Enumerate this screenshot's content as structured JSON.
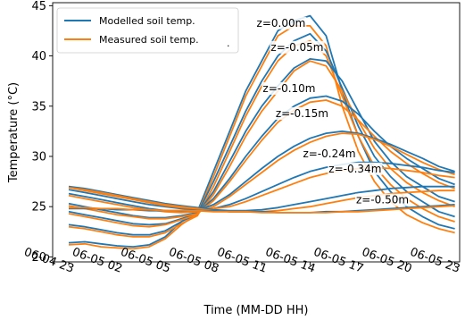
{
  "chart_data": {
    "type": "line",
    "xlabel": "Time (MM-DD HH)",
    "ylabel": "Temperature (°C)",
    "xlim": [
      -1,
      24.3
    ],
    "ylim": [
      19.5,
      45.3
    ],
    "x_ticks": [
      0,
      3,
      6,
      9,
      12,
      15,
      18,
      21,
      24
    ],
    "x_tick_labels": [
      "06-04 23",
      "06-05 02",
      "06-05 05",
      "06-05 08",
      "06-05 11",
      "06-05 14",
      "06-05 17",
      "06-05 20",
      "06-05 23"
    ],
    "y_ticks": [
      20,
      25,
      30,
      35,
      40,
      45
    ],
    "y_tick_labels": [
      "20",
      "25",
      "30",
      "35",
      "40",
      "45"
    ],
    "legend": {
      "position": "top-left",
      "entries": [
        {
          "label": "Modelled soil temp.",
          "color": "#1f77b4"
        },
        {
          "label": "Measured soil temp.",
          "color": "#ff7f0e"
        }
      ]
    },
    "legend_artifact": ".",
    "colors": {
      "modelled": "#1f77b4",
      "measured": "#ff7f0e"
    },
    "x": [
      0,
      1,
      2,
      3,
      4,
      5,
      6,
      7,
      8,
      9,
      10,
      11,
      12,
      13,
      14,
      15,
      16,
      17,
      18,
      19,
      20,
      21,
      22,
      23,
      24
    ],
    "depths": [
      {
        "label": "z=0.00m",
        "modelled": [
          21.4,
          21.5,
          21.3,
          21.1,
          21.0,
          21.2,
          22.0,
          23.5,
          24.5,
          28.5,
          32.5,
          36.5,
          39.5,
          42.5,
          43.5,
          44.0,
          42.0,
          36.5,
          32.0,
          28.5,
          26.5,
          25.0,
          24.0,
          23.2,
          22.8
        ],
        "measured": [
          21.2,
          21.3,
          21.0,
          20.9,
          20.8,
          21.0,
          21.8,
          23.2,
          24.3,
          28.0,
          32.0,
          36.0,
          39.0,
          42.0,
          43.0,
          43.0,
          41.0,
          35.0,
          30.5,
          27.5,
          25.5,
          24.2,
          23.4,
          22.8,
          22.4
        ]
      },
      {
        "label": "z=-0.05m",
        "modelled": [
          23.2,
          23.0,
          22.7,
          22.4,
          22.2,
          22.2,
          22.6,
          23.5,
          24.3,
          27.5,
          31.0,
          34.5,
          37.5,
          40.0,
          41.5,
          42.2,
          40.5,
          36.8,
          33.0,
          30.0,
          28.0,
          26.5,
          25.5,
          24.5,
          24.0
        ],
        "measured": [
          23.0,
          22.8,
          22.5,
          22.2,
          22.0,
          22.0,
          22.4,
          23.3,
          24.1,
          27.0,
          30.5,
          34.0,
          37.0,
          39.5,
          41.0,
          41.5,
          40.0,
          36.0,
          32.0,
          29.0,
          27.2,
          25.8,
          24.8,
          24.0,
          23.5
        ]
      },
      {
        "label": "z=-0.10m",
        "modelled": [
          24.5,
          24.2,
          23.9,
          23.6,
          23.3,
          23.2,
          23.3,
          23.8,
          24.3,
          26.5,
          29.5,
          32.5,
          35.0,
          37.0,
          38.8,
          39.7,
          39.5,
          37.5,
          34.5,
          31.5,
          29.5,
          28.0,
          27.0,
          26.0,
          25.5
        ],
        "measured": [
          24.3,
          24.0,
          23.7,
          23.4,
          23.1,
          23.0,
          23.2,
          23.7,
          24.2,
          26.2,
          29.0,
          32.0,
          34.5,
          36.5,
          38.5,
          39.5,
          39.0,
          36.5,
          33.5,
          30.8,
          28.8,
          27.4,
          26.4,
          25.6,
          25.0
        ]
      },
      {
        "label": "z=-0.15m",
        "modelled": [
          25.3,
          25.0,
          24.7,
          24.4,
          24.1,
          23.9,
          23.9,
          24.1,
          24.4,
          25.8,
          27.8,
          30.0,
          32.0,
          33.8,
          35.0,
          35.8,
          36.0,
          35.5,
          34.2,
          32.5,
          31.0,
          29.8,
          28.8,
          27.8,
          27.2
        ],
        "measured": [
          25.1,
          24.8,
          24.5,
          24.2,
          24.0,
          23.8,
          23.8,
          24.0,
          24.3,
          25.6,
          27.5,
          29.6,
          31.6,
          33.4,
          34.6,
          35.4,
          35.6,
          35.0,
          33.6,
          32.0,
          30.5,
          29.3,
          28.3,
          27.4,
          26.8
        ]
      },
      {
        "label": "z=-0.24m",
        "modelled": [
          26.3,
          26.0,
          25.7,
          25.4,
          25.1,
          24.8,
          24.6,
          24.5,
          24.6,
          25.2,
          26.2,
          27.5,
          28.8,
          30.0,
          31.0,
          31.8,
          32.3,
          32.5,
          32.3,
          31.8,
          31.2,
          30.5,
          29.8,
          29.0,
          28.5
        ],
        "measured": [
          26.1,
          25.8,
          25.5,
          25.2,
          24.9,
          24.7,
          24.5,
          24.4,
          24.5,
          25.0,
          26.0,
          27.2,
          28.4,
          29.6,
          30.6,
          31.4,
          32.0,
          32.3,
          32.2,
          31.7,
          31.0,
          30.2,
          29.4,
          28.7,
          28.2
        ]
      },
      {
        "label": "z=-0.34m",
        "modelled": [
          26.7,
          26.4,
          26.1,
          25.8,
          25.5,
          25.2,
          25.0,
          24.8,
          24.7,
          24.8,
          25.2,
          25.8,
          26.5,
          27.2,
          27.9,
          28.5,
          28.9,
          29.2,
          29.4,
          29.4,
          29.3,
          29.1,
          28.9,
          28.6,
          28.4
        ],
        "measured": [
          26.9,
          26.6,
          26.3,
          26.0,
          25.7,
          25.4,
          25.1,
          24.9,
          24.8,
          24.8,
          25.0,
          25.5,
          26.1,
          26.7,
          27.3,
          27.9,
          28.3,
          28.6,
          28.8,
          28.9,
          28.8,
          28.6,
          28.4,
          28.1,
          27.9
        ]
      },
      {
        "label": "z=-0.50m",
        "modelled": [
          27.0,
          26.8,
          26.5,
          26.2,
          25.9,
          25.6,
          25.3,
          25.1,
          24.9,
          24.7,
          24.6,
          24.6,
          24.7,
          24.9,
          25.2,
          25.5,
          25.8,
          26.1,
          26.4,
          26.6,
          26.8,
          26.9,
          27.0,
          27.0,
          27.0
        ],
        "measured": [
          26.9,
          26.7,
          26.4,
          26.1,
          25.8,
          25.5,
          25.2,
          25.0,
          24.8,
          24.6,
          24.5,
          24.5,
          24.5,
          24.6,
          24.8,
          25.0,
          25.3,
          25.6,
          25.9,
          26.1,
          26.3,
          26.4,
          26.5,
          26.6,
          26.6
        ]
      }
    ],
    "flat_curves": [
      {
        "modelled": [
          24.8,
          24.8,
          24.8,
          24.7,
          24.7,
          24.6,
          24.6,
          24.6,
          24.6,
          24.6,
          24.5,
          24.5,
          24.5,
          24.4,
          24.4,
          24.4,
          24.5,
          24.5,
          24.6,
          24.7,
          24.8,
          24.9,
          25.0,
          25.1,
          25.2
        ],
        "measured": [
          24.9,
          24.9,
          24.8,
          24.8,
          24.7,
          24.7,
          24.6,
          24.6,
          24.6,
          24.5,
          24.5,
          24.5,
          24.4,
          24.4,
          24.4,
          24.4,
          24.4,
          24.5,
          24.5,
          24.6,
          24.7,
          24.8,
          24.9,
          25.0,
          25.1
        ]
      }
    ]
  }
}
